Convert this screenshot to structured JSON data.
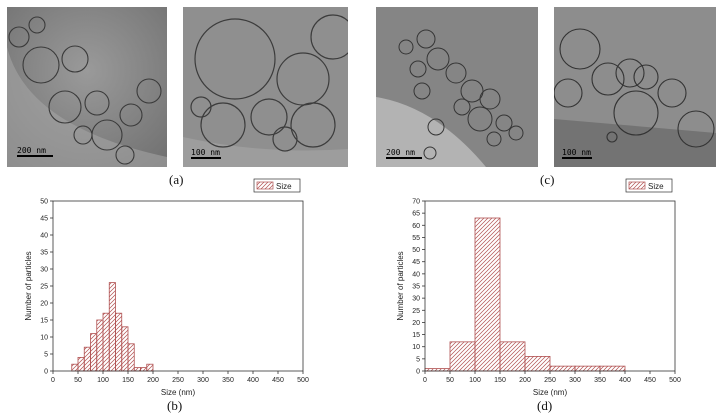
{
  "micrographs": [
    {
      "id": "a-left",
      "scalebar": "200 nm"
    },
    {
      "id": "a-right",
      "scalebar": "100 nm"
    },
    {
      "id": "c-left",
      "scalebar": "200 nm"
    },
    {
      "id": "c-right",
      "scalebar": "100 nm"
    }
  ],
  "labels": {
    "a": "(a)",
    "b": "(b)",
    "c": "(c)",
    "d": "(d)"
  },
  "colors": {
    "bar": "#b05050",
    "micro_bg": "#8c8c8c"
  },
  "chart_data": [
    {
      "type": "bar",
      "panel": "b",
      "xlabel": "Size (nm)",
      "ylabel": "Number of particles",
      "xlim": [
        0,
        500
      ],
      "ylim": [
        0,
        50
      ],
      "xticks": [
        0,
        50,
        100,
        150,
        200,
        250,
        300,
        350,
        400,
        450,
        500
      ],
      "yticks": [
        0,
        5,
        10,
        15,
        20,
        25,
        30,
        35,
        40,
        45,
        50
      ],
      "legend": {
        "label": "Size",
        "position": "top-right"
      },
      "bin_width": 12.5,
      "bins": [
        37.5,
        50,
        62.5,
        75,
        87.5,
        100,
        112.5,
        125,
        137.5,
        150,
        162.5,
        175,
        187.5,
        200,
        212.5,
        225,
        237.5,
        250
      ],
      "values": [
        2,
        4,
        7,
        11,
        15,
        17,
        26,
        17,
        13,
        8,
        1,
        1,
        2,
        0,
        0,
        0,
        0,
        0
      ],
      "series": [
        {
          "name": "Size"
        }
      ]
    },
    {
      "type": "bar",
      "panel": "d",
      "xlabel": "Size (nm)",
      "ylabel": "Number of particles",
      "xlim": [
        0,
        500
      ],
      "ylim": [
        0,
        70
      ],
      "xticks": [
        0,
        50,
        100,
        150,
        200,
        250,
        300,
        350,
        400,
        450,
        500
      ],
      "yticks": [
        0,
        5,
        10,
        15,
        20,
        25,
        30,
        35,
        40,
        45,
        50,
        55,
        60,
        65,
        70
      ],
      "legend": {
        "label": "Size",
        "position": "top-right"
      },
      "bin_width": 50,
      "bins": [
        0,
        50,
        100,
        150,
        200,
        250,
        300,
        350
      ],
      "values": [
        1,
        12,
        63,
        12,
        6,
        2,
        2,
        2
      ],
      "series": [
        {
          "name": "Size"
        }
      ]
    }
  ]
}
